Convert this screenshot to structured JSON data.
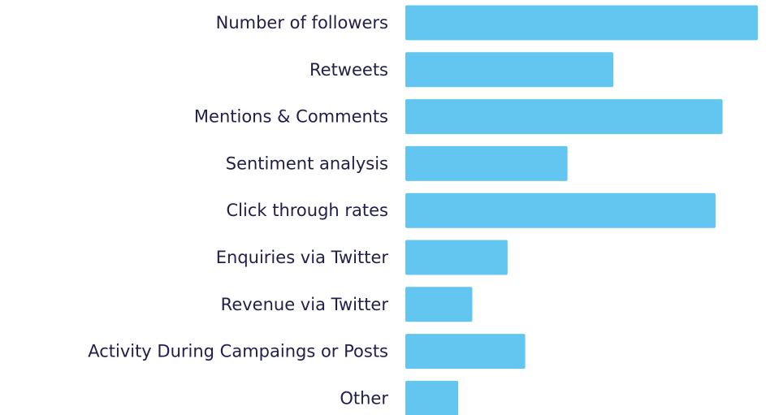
{
  "chart_data": {
    "type": "hbar",
    "categories": [
      "Number of followers",
      "Retweets",
      "Mentions & Comments",
      "Sentiment analysis",
      "Click through rates",
      "Enquiries via Twitter",
      "Revenue via Twitter",
      "Activity During Campaings or Posts",
      "Other"
    ],
    "values": [
      100,
      59,
      90,
      46,
      88,
      29,
      19,
      34,
      15
    ],
    "color": "#62c6f0",
    "xlim": [
      0,
      100
    ]
  }
}
